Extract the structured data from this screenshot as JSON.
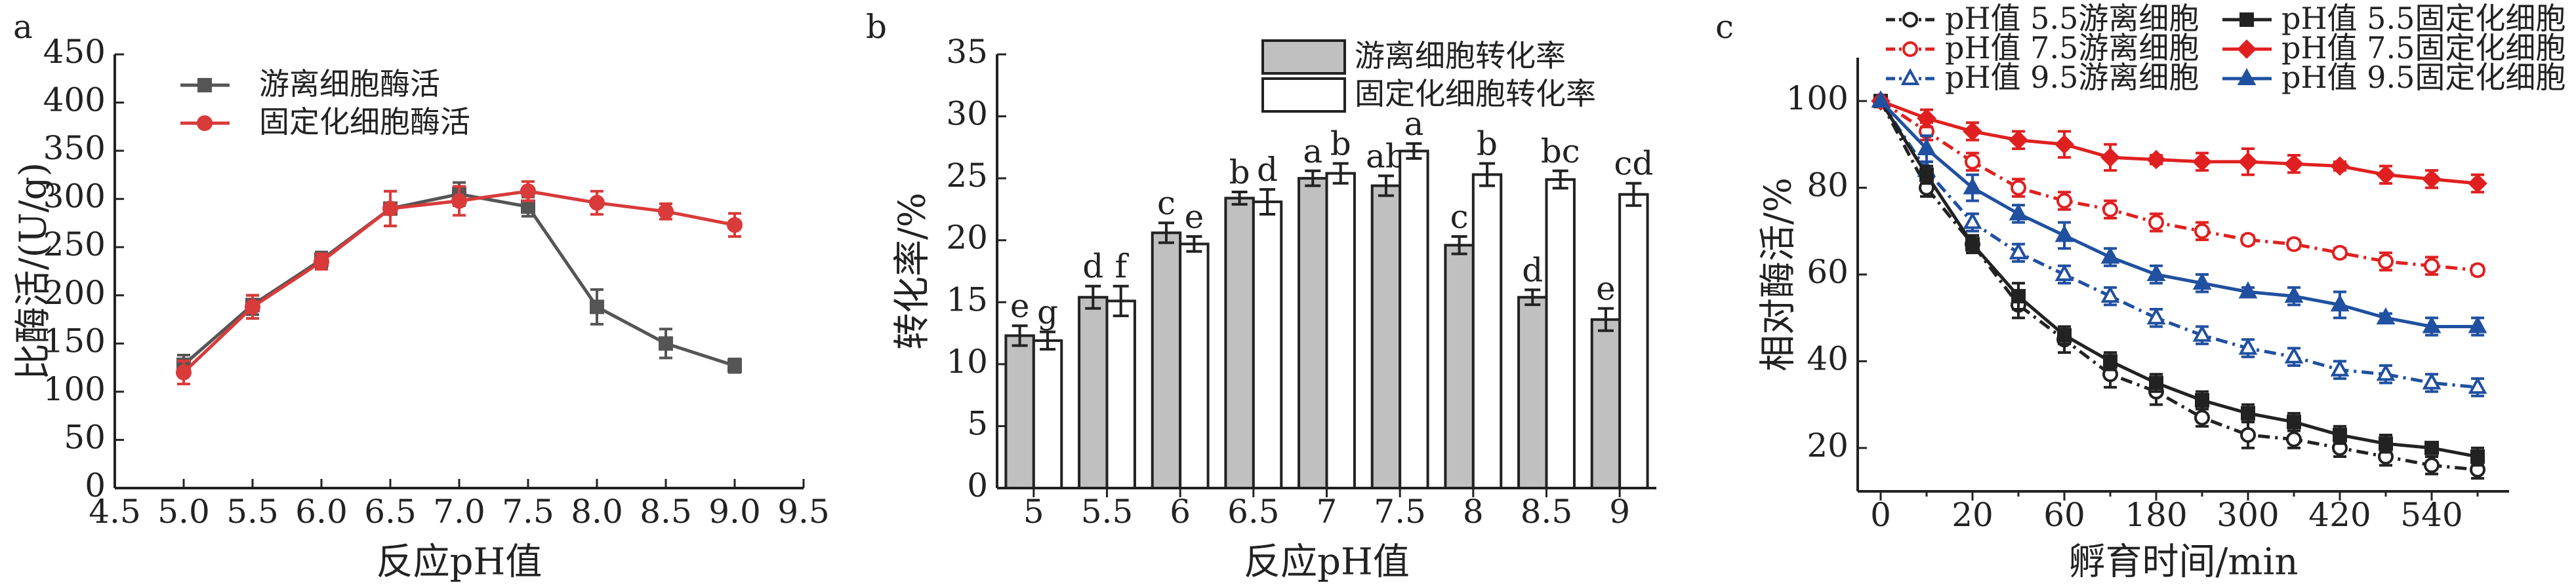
{
  "chart_data": [
    {
      "type": "line",
      "panel": "a",
      "y_label": "比酶活/(U/g)",
      "x_label": "反应pH值",
      "x": [
        5,
        5.5,
        6,
        6.5,
        7,
        7.5,
        8,
        8.5,
        9
      ],
      "xlim": [
        4.5,
        9.5
      ],
      "xticks": [
        4.5,
        {
          "value": 5,
          "label": "5.0"
        },
        5.5,
        {
          "value": 6,
          "label": "6.0"
        },
        6.5,
        {
          "value": 7,
          "label": "7.0"
        },
        7.5,
        {
          "value": 8,
          "label": "8.0"
        },
        8.5,
        {
          "value": 9,
          "label": "9.0"
        },
        9.5
      ],
      "ylim": [
        0,
        450
      ],
      "yticks": [
        0,
        50,
        100,
        150,
        200,
        250,
        300,
        350,
        400,
        450
      ],
      "series": [
        {
          "name": "游离细胞酶活",
          "color": "#555555",
          "marker": "square",
          "hollow": false,
          "dashed": false,
          "values": [
            128,
            190,
            237,
            290,
            305,
            292,
            188,
            150,
            127
          ],
          "errors": [
            10,
            10,
            8,
            18,
            12,
            10,
            18,
            15,
            7
          ]
        },
        {
          "name": "固定化细胞酶活",
          "color": "#d93a3a",
          "marker": "circle",
          "hollow": false,
          "dashed": false,
          "values": [
            120,
            188,
            235,
            290,
            298,
            308,
            296,
            287,
            273
          ],
          "errors": [
            12,
            12,
            8,
            18,
            15,
            10,
            12,
            8,
            12
          ]
        }
      ]
    },
    {
      "type": "bar",
      "panel": "b",
      "y_label": "转化率/%",
      "x_label": "反应pH值",
      "categories": [
        "5",
        "5.5",
        "6",
        "6.5",
        "7",
        "7.5",
        "8",
        "8.5",
        "9"
      ],
      "ylim": [
        0,
        35
      ],
      "yticks": [
        0,
        5,
        10,
        15,
        20,
        25,
        30,
        35
      ],
      "series": [
        {
          "name": "游离细胞转化率",
          "color": "#c0c0c0",
          "values": [
            12.3,
            15.4,
            20.6,
            23.4,
            25.0,
            24.4,
            19.6,
            15.4,
            13.6
          ],
          "errors": [
            0.8,
            0.9,
            0.8,
            0.5,
            0.6,
            0.8,
            0.7,
            0.6,
            0.9
          ],
          "letters": [
            "e",
            "d",
            "c",
            "b",
            "a",
            "ab",
            "c",
            "d",
            "e"
          ]
        },
        {
          "name": "固定化细胞转化率",
          "color": "#ffffff",
          "values": [
            11.9,
            15.1,
            19.7,
            23.1,
            25.4,
            27.2,
            25.3,
            24.9,
            23.7
          ],
          "errors": [
            0.7,
            1.2,
            0.6,
            1.0,
            0.8,
            0.6,
            0.9,
            0.7,
            0.9
          ],
          "letters": [
            "g",
            "f",
            "e",
            "d",
            "b",
            "a",
            "b",
            "bc",
            "cd"
          ]
        }
      ]
    },
    {
      "type": "line",
      "panel": "c",
      "y_label": "相对酶活/%",
      "x_label": "孵育时间/min",
      "categories": [
        "0",
        null,
        "20",
        null,
        "60",
        null,
        "180",
        null,
        "300",
        null,
        "420",
        null,
        "540",
        null
      ],
      "ylim": [
        10,
        110
      ],
      "yticks": [
        20,
        40,
        60,
        80,
        100
      ],
      "series": [
        {
          "name": "pH值 5.5游离细胞",
          "color": "#222222",
          "marker": "circle",
          "hollow": true,
          "dashed": true,
          "values": [
            100,
            80,
            67,
            53,
            45,
            37,
            33,
            27,
            23,
            22,
            20,
            18,
            16,
            15
          ],
          "errors": [
            0,
            2,
            2,
            3,
            3,
            3,
            3,
            2,
            3,
            2,
            2,
            2,
            2,
            2
          ]
        },
        {
          "name": "pH值 7.5游离细胞",
          "color": "#e02020",
          "marker": "circle",
          "hollow": true,
          "dashed": true,
          "values": [
            100,
            93,
            86,
            80,
            77,
            75,
            72,
            70,
            68,
            67,
            65,
            63,
            62,
            61
          ],
          "errors": [
            0,
            2,
            2,
            2,
            2,
            2,
            2,
            2,
            1,
            1,
            1,
            2,
            2,
            1
          ]
        },
        {
          "name": "pH值 9.5游离细胞",
          "color": "#2050a0",
          "marker": "triangle",
          "hollow": true,
          "dashed": true,
          "values": [
            100,
            84,
            72,
            65,
            60,
            55,
            50,
            46,
            43,
            41,
            38,
            37,
            35,
            34
          ],
          "errors": [
            0,
            2,
            2,
            2,
            2,
            2,
            2,
            2,
            2,
            2,
            2,
            2,
            2,
            2
          ]
        },
        {
          "name": "pH值 5.5固定化细胞",
          "color": "#222222",
          "marker": "square",
          "hollow": false,
          "dashed": false,
          "values": [
            100,
            83,
            67,
            55,
            46,
            40,
            35,
            31,
            28,
            26,
            23,
            21,
            20,
            18
          ],
          "errors": [
            0,
            2,
            2,
            3,
            2,
            2,
            2,
            2,
            2,
            2,
            2,
            2,
            1,
            2
          ]
        },
        {
          "name": "pH值 7.5固定化细胞",
          "color": "#e02020",
          "marker": "diamond",
          "hollow": false,
          "dashed": false,
          "values": [
            100,
            96,
            93,
            91,
            90,
            87,
            86.5,
            86,
            86,
            85.5,
            85,
            83,
            82,
            81
          ],
          "errors": [
            0,
            2,
            2,
            2,
            3,
            3,
            1,
            2,
            3,
            2,
            1,
            2,
            2,
            2
          ]
        },
        {
          "name": "pH值 9.5固定化细胞",
          "color": "#2050a0",
          "marker": "triangle",
          "hollow": false,
          "dashed": false,
          "values": [
            100,
            89,
            80,
            74,
            69,
            64,
            60,
            58,
            56,
            55,
            53,
            50,
            48,
            48
          ],
          "errors": [
            0,
            3,
            3,
            2,
            3,
            2,
            2,
            2,
            1,
            2,
            3,
            1,
            2,
            2
          ]
        }
      ]
    }
  ]
}
